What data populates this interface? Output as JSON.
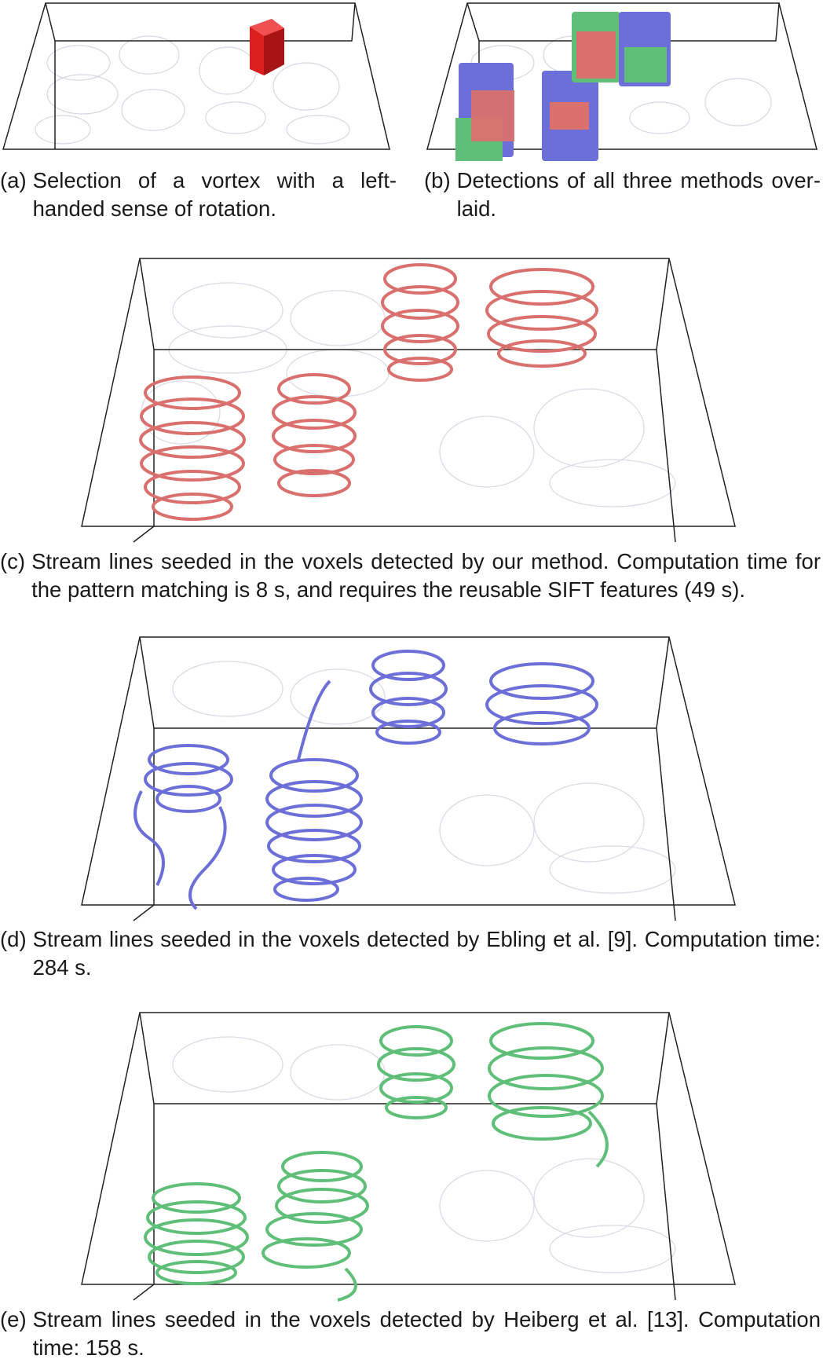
{
  "captions": {
    "a": {
      "label": "(a)",
      "text": "Selection of a vortex with a left-handed sense of rotation."
    },
    "b": {
      "label": "(b)",
      "text": "Detections of all three methods over-laid."
    },
    "c": {
      "label": "(c)",
      "text": "Stream lines seeded in the voxels detected by our method. Computation time for the pattern matching is 8 s, and requires the reusable SIFT features (49 s)."
    },
    "d": {
      "label": "(d)",
      "text": "Stream lines seeded in the voxels detected by Ebling et al. [9]. Computation time: 284 s."
    },
    "e": {
      "label": "(e)",
      "text": "Stream lines seeded in the voxels detected by Heiberg et al. [13]. Computation time: 158 s."
    }
  },
  "colors": {
    "selection": "#dd1e1e",
    "ours": "#d9706e",
    "ebling": "#6c6fd8",
    "heiberg": "#5fbf78",
    "context_lines": "#b4b8cc",
    "box_edges": "#222222"
  }
}
